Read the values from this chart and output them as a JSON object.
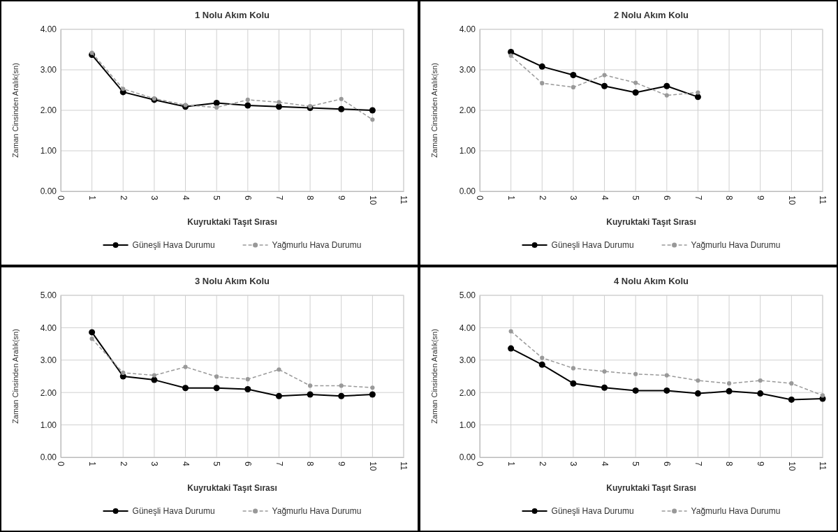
{
  "chart_data": [
    {
      "type": "line",
      "title": "1 Nolu Akım Kolu",
      "xlabel": "Kuyruktaki Taşıt Sırası",
      "ylabel": "Zaman Cinsinden Aralık(sn)",
      "xlim": [
        0,
        11
      ],
      "xticks": [
        0,
        1,
        2,
        3,
        4,
        5,
        6,
        7,
        8,
        9,
        10,
        11
      ],
      "ylim": [
        0,
        4
      ],
      "yticks": [
        {
          "value": 0,
          "label": "0.00"
        },
        {
          "value": 1,
          "label": "1.00"
        },
        {
          "value": 2,
          "label": "2.00"
        },
        {
          "value": 3,
          "label": "3.00"
        },
        {
          "value": 4,
          "label": "4.00"
        }
      ],
      "grid": true,
      "legend": "bottom",
      "x": [
        1,
        2,
        3,
        4,
        5,
        6,
        7,
        8,
        9,
        10
      ],
      "series": [
        {
          "name": "Güneşli Hava Durumu",
          "color": "#000000",
          "line_style": "solid",
          "marker": "circle",
          "values": [
            3.37,
            2.45,
            2.26,
            2.09,
            2.18,
            2.12,
            2.09,
            2.06,
            2.03,
            2.0
          ]
        },
        {
          "name": "Yağmurlu Hava Durumu",
          "color": "#999999",
          "line_style": "dashed",
          "marker": "circle",
          "values": [
            3.42,
            2.53,
            2.29,
            2.13,
            2.07,
            2.26,
            2.2,
            2.1,
            2.28,
            1.77
          ]
        }
      ]
    },
    {
      "type": "line",
      "title": "2 Nolu Akım Kolu",
      "xlabel": "Kuyruktaki Taşıt Sırası",
      "ylabel": "Zaman Cinsinden Aralık(sn)",
      "xlim": [
        0,
        11
      ],
      "xticks": [
        0,
        1,
        2,
        3,
        4,
        5,
        6,
        7,
        8,
        9,
        10,
        11
      ],
      "ylim": [
        0,
        4
      ],
      "yticks": [
        {
          "value": 0,
          "label": "0.00"
        },
        {
          "value": 1,
          "label": "1.00"
        },
        {
          "value": 2,
          "label": "2.00"
        },
        {
          "value": 3,
          "label": "3.00"
        },
        {
          "value": 4,
          "label": "4.00"
        }
      ],
      "grid": true,
      "legend": "bottom",
      "x": [
        1,
        2,
        3,
        4,
        5,
        6,
        7
      ],
      "series": [
        {
          "name": "Güneşli Hava Durumu",
          "color": "#000000",
          "line_style": "solid",
          "marker": "circle",
          "values": [
            3.44,
            3.08,
            2.87,
            2.6,
            2.44,
            2.6,
            2.33
          ]
        },
        {
          "name": "Yağmurlu Hava Durumu",
          "color": "#999999",
          "line_style": "dashed",
          "marker": "circle",
          "values": [
            3.35,
            2.67,
            2.57,
            2.87,
            2.68,
            2.37,
            2.44
          ]
        }
      ]
    },
    {
      "type": "line",
      "title": "3 Nolu Akım Kolu",
      "xlabel": "Kuyruktaki Taşıt Sırası",
      "ylabel": "Zaman Cinsinden Aralık(sn)",
      "xlim": [
        0,
        11
      ],
      "xticks": [
        0,
        1,
        2,
        3,
        4,
        5,
        6,
        7,
        8,
        9,
        10,
        11
      ],
      "ylim": [
        0,
        5
      ],
      "yticks": [
        {
          "value": 0,
          "label": "0.00"
        },
        {
          "value": 1,
          "label": "1.00"
        },
        {
          "value": 2,
          "label": "2.00"
        },
        {
          "value": 3,
          "label": "3.00"
        },
        {
          "value": 4,
          "label": "4.00"
        },
        {
          "value": 5,
          "label": "5.00"
        }
      ],
      "grid": true,
      "legend": "bottom",
      "x": [
        1,
        2,
        3,
        4,
        5,
        6,
        7,
        8,
        9,
        10
      ],
      "series": [
        {
          "name": "Güneşli Hava Durumu",
          "color": "#000000",
          "line_style": "solid",
          "marker": "circle",
          "values": [
            3.86,
            2.5,
            2.39,
            2.14,
            2.14,
            2.1,
            1.89,
            1.94,
            1.89,
            1.94
          ]
        },
        {
          "name": "Yağmurlu Hava Durumu",
          "color": "#999999",
          "line_style": "dashed",
          "marker": "circle",
          "values": [
            3.66,
            2.61,
            2.53,
            2.79,
            2.49,
            2.41,
            2.71,
            2.21,
            2.21,
            2.15
          ]
        }
      ]
    },
    {
      "type": "line",
      "title": "4 Nolu Akım Kolu",
      "xlabel": "Kuyruktaki Taşıt Sırası",
      "ylabel": "Zaman Cinsinden Aralık(sn)",
      "xlim": [
        0,
        11
      ],
      "xticks": [
        0,
        1,
        2,
        3,
        4,
        5,
        6,
        7,
        8,
        9,
        10,
        11
      ],
      "ylim": [
        0,
        5
      ],
      "yticks": [
        {
          "value": 0,
          "label": "0.00"
        },
        {
          "value": 1,
          "label": "1.00"
        },
        {
          "value": 2,
          "label": "2.00"
        },
        {
          "value": 3,
          "label": "3.00"
        },
        {
          "value": 4,
          "label": "4.00"
        },
        {
          "value": 5,
          "label": "5.00"
        }
      ],
      "grid": true,
      "legend": "bottom",
      "x": [
        1,
        2,
        3,
        4,
        5,
        6,
        7,
        8,
        9,
        10,
        11
      ],
      "series": [
        {
          "name": "Güneşli Hava Durumu",
          "color": "#000000",
          "line_style": "solid",
          "marker": "circle",
          "values": [
            3.36,
            2.86,
            2.28,
            2.15,
            2.06,
            2.06,
            1.97,
            2.04,
            1.97,
            1.78,
            1.81
          ]
        },
        {
          "name": "Yağmurlu Hava Durumu",
          "color": "#999999",
          "line_style": "dashed",
          "marker": "circle",
          "values": [
            3.89,
            3.07,
            2.75,
            2.65,
            2.57,
            2.53,
            2.37,
            2.28,
            2.37,
            2.28,
            1.91
          ]
        }
      ]
    }
  ]
}
